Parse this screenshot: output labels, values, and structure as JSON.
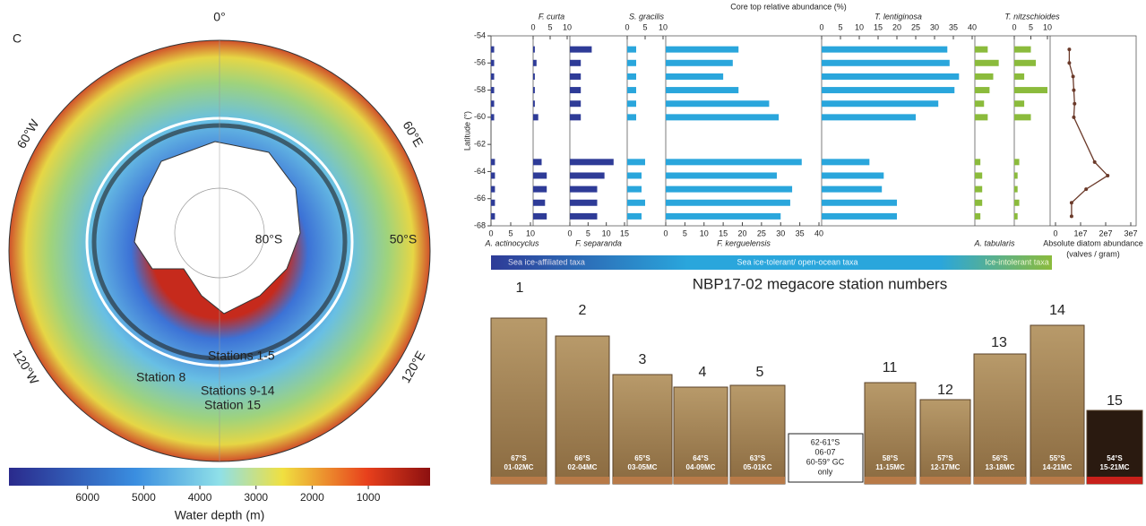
{
  "panel_letter": "C",
  "map": {
    "lon_labels": [
      "0°",
      "60°E",
      "120°E",
      "120°W",
      "60°W"
    ],
    "lat_labels": [
      "80°S",
      "50°S"
    ],
    "stations": [
      "Stations 1-5",
      "Station 8",
      "Stations 9-14",
      "Station 15"
    ],
    "colorbar": {
      "label": "Water depth (m)",
      "lim": [
        7400,
        -100
      ],
      "ticks": [
        6000,
        5000,
        4000,
        3000,
        2000,
        1000
      ]
    }
  },
  "chart_data": [
    {
      "type": "bar",
      "title": "Core top relative abundance (%)",
      "y_label": "Latitude (°)",
      "latitudes": [
        -55,
        -56,
        -57,
        -58,
        -59,
        -60,
        -63.3,
        -64.3,
        -65.3,
        -66.3,
        -67.3
      ],
      "ylim": [
        -54,
        -68
      ],
      "yticks": [
        -54,
        -56,
        -58,
        -60,
        -62,
        -64,
        -66,
        -68
      ],
      "series": [
        {
          "name": "A. actinocyclus",
          "side": "bottom",
          "color": "#2e3b97",
          "xlim": [
            0,
            10
          ],
          "xticks": [
            0,
            5,
            10
          ],
          "values": [
            0.8,
            0.8,
            0.8,
            0.8,
            0.8,
            0.8,
            1,
            1,
            1,
            1,
            1
          ]
        },
        {
          "name": "F. curta",
          "side": "top",
          "color": "#2e3b97",
          "xlim": [
            0,
            10
          ],
          "xticks": [
            0,
            5,
            10
          ],
          "values": [
            0.5,
            1,
            0.5,
            0.5,
            0.5,
            1.5,
            2.5,
            4,
            4,
            3.5,
            4
          ]
        },
        {
          "name": "F. separanda",
          "side": "bottom",
          "color": "#2e3b97",
          "xlim": [
            0,
            15
          ],
          "xticks": [
            0,
            5,
            10,
            15
          ],
          "values": [
            6,
            3,
            3,
            3,
            3,
            3,
            12,
            9.5,
            7.5,
            7.5,
            7.5
          ]
        },
        {
          "name": "S. gracilis",
          "side": "top",
          "color": "#2aa6dc",
          "xlim": [
            0,
            10
          ],
          "xticks": [
            0,
            5,
            10
          ],
          "values": [
            2.5,
            2.5,
            2.5,
            2.5,
            2.5,
            2.5,
            5,
            4,
            4,
            5,
            4
          ]
        },
        {
          "name": "F. kerguelensis",
          "side": "bottom",
          "color": "#2aa6dc",
          "xlim": [
            0,
            40
          ],
          "xticks": [
            0,
            5,
            10,
            15,
            20,
            25,
            30,
            35,
            40
          ],
          "values": [
            19,
            17.5,
            15,
            19,
            27,
            29.5,
            35.5,
            29,
            33,
            32.5,
            30
          ]
        },
        {
          "name": "T. lentiginosa",
          "side": "top",
          "color": "#2aa6dc",
          "xlim": [
            0,
            40
          ],
          "xticks": [
            0,
            5,
            10,
            15,
            20,
            25,
            30,
            35,
            40
          ],
          "values": [
            33.4,
            34,
            36.5,
            35.3,
            31,
            25,
            12.7,
            16.5,
            16,
            20,
            20
          ]
        },
        {
          "name": "A. tabularis",
          "side": "bottom",
          "color": "#8bbb3c",
          "xlim": [
            0,
            10
          ],
          "values": [
            3.5,
            6.5,
            5,
            4,
            2.5,
            3.5,
            1.5,
            2,
            2,
            2,
            1.5
          ]
        },
        {
          "name": "T. nitzschioides",
          "side": "top",
          "color": "#8bbb3c",
          "xlim": [
            0,
            10
          ],
          "xticks": [
            0,
            5,
            10
          ],
          "values": [
            5,
            6.5,
            3,
            10,
            3,
            5,
            1.5,
            1,
            1,
            1.5,
            1
          ]
        }
      ]
    },
    {
      "type": "line",
      "x_label": "Absolute diatom abundance",
      "x_unit": "(valves / gram)",
      "color": "#6b3a2a",
      "latitudes": [
        -55,
        -56,
        -57,
        -58,
        -59,
        -60,
        -63.3,
        -64.3,
        -65.3,
        -66.3,
        -67.3
      ],
      "values": [
        5500000,
        5500000,
        7000000,
        7300000,
        7600000,
        7300000,
        15600000,
        20800000,
        12200000,
        6400000,
        6400000
      ],
      "xlim": [
        0,
        30000000
      ],
      "xticks": [
        0,
        {
          "value": 10000000,
          "label": "1e7"
        },
        {
          "value": 20000000,
          "label": "2e7"
        },
        {
          "value": 30000000,
          "label": "3e7"
        }
      ]
    }
  ],
  "legend_bar": [
    "Sea ice-affiliated taxa",
    "Sea ice-tolerant/ open-ocean taxa",
    "Ice-intolerant taxa"
  ],
  "cores": {
    "title": "NBP17-02 megacore station numbers",
    "stations": [
      {
        "number": "1",
        "label": [
          "67°S",
          "01-02MC"
        ]
      },
      {
        "number": "2",
        "label": [
          "66°S",
          "02-04MC"
        ]
      },
      {
        "number": "3",
        "label": [
          "65°S",
          "03-05MC"
        ]
      },
      {
        "number": "4",
        "label": [
          "64°S",
          "04-09MC"
        ]
      },
      {
        "number": "5",
        "label": [
          "63°S",
          "05-01KC"
        ]
      },
      {
        "number": "11",
        "label": [
          "58°S",
          "11-15MC"
        ]
      },
      {
        "number": "12",
        "label": [
          "57°S",
          "12-17MC"
        ]
      },
      {
        "number": "13",
        "label": [
          "56°S",
          "13-18MC"
        ]
      },
      {
        "number": "14",
        "label": [
          "55°S",
          "14-21MC"
        ]
      },
      {
        "number": "15",
        "label": [
          "54°S",
          "15-21MC"
        ]
      }
    ],
    "gap": [
      "62-61°S",
      "06-07",
      "60-59° GC",
      "only"
    ]
  }
}
